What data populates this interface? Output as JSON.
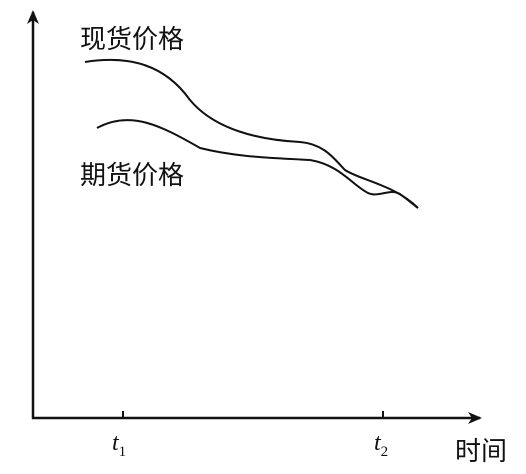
{
  "labels": {
    "spot": "现货价格",
    "futures": "期货价格",
    "time": "时间",
    "t1": {
      "main": "t",
      "sub": "1"
    },
    "t2": {
      "main": "t",
      "sub": "2"
    }
  }
}
